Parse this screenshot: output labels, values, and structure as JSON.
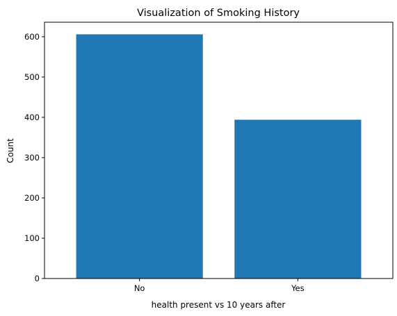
{
  "chart_data": {
    "type": "bar",
    "title": "Visualization of Smoking History",
    "xlabel": "health present vs 10 years after",
    "ylabel": "Count",
    "categories": [
      "No",
      "Yes"
    ],
    "values": [
      606,
      394
    ],
    "ylim": [
      0,
      636
    ],
    "yticks": [
      0,
      100,
      200,
      300,
      400,
      500,
      600
    ],
    "bar_color": "#1f77b4",
    "grid": false
  }
}
